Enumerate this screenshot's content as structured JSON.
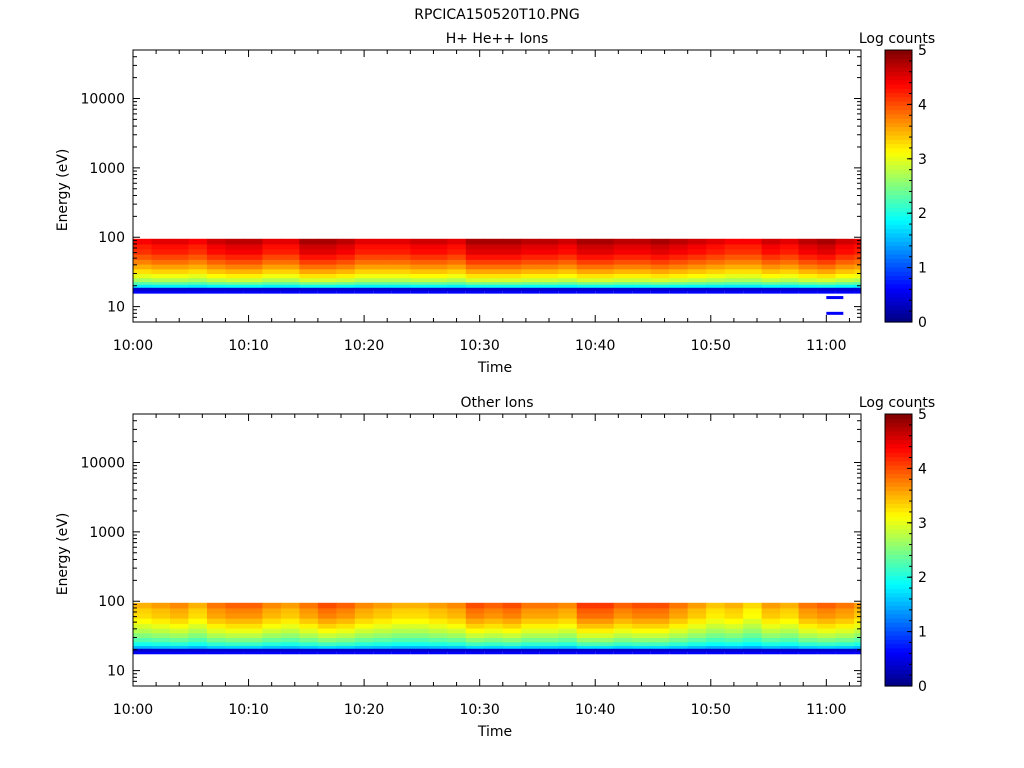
{
  "figure_title": "RPCICA150520T10.PNG",
  "colors": {
    "jet_stops": [
      "#00007f",
      "#0000ff",
      "#0080ff",
      "#00ffff",
      "#80ff80",
      "#ffff00",
      "#ff8000",
      "#ff0000",
      "#7f0000"
    ]
  },
  "chart_data": [
    {
      "type": "heatmap",
      "title": "H+ He++ Ions",
      "xlabel": "Time",
      "ylabel": "Energy (eV)",
      "yscale": "log",
      "ylim": [
        6,
        50000
      ],
      "xlim": [
        "10:00",
        "11:03"
      ],
      "xticks": [
        "10:00",
        "10:10",
        "10:20",
        "10:30",
        "10:40",
        "10:50",
        "11:00"
      ],
      "yticks": [
        "10",
        "100",
        "1000",
        "10000"
      ],
      "colorbar": {
        "label": "Log counts",
        "range": [
          0,
          5
        ],
        "ticks": [
          "0",
          "1",
          "2",
          "3",
          "4",
          "5"
        ]
      },
      "time_bins_min": [
        0,
        1.6,
        3.2,
        4.8,
        6.4,
        8.0,
        9.6,
        11.2,
        12.8,
        14.4,
        16.0,
        17.6,
        19.2,
        20.8,
        22.4,
        24.0,
        25.6,
        27.2,
        28.8,
        30.4,
        32.0,
        33.6,
        35.2,
        36.8,
        38.4,
        40.0,
        41.6,
        43.2,
        44.8,
        46.4,
        48.0,
        49.6,
        51.2,
        52.8,
        54.4,
        56.0,
        57.6,
        59.2,
        60.8,
        62.4
      ],
      "energy_edges_eV": [
        17,
        19,
        21,
        23,
        26,
        30,
        35,
        41,
        48,
        57,
        68,
        80,
        95
      ],
      "peak_log_counts": [
        4.5,
        4.6,
        4.6,
        4.5,
        4.7,
        4.8,
        4.8,
        4.6,
        4.6,
        4.9,
        4.9,
        4.8,
        4.6,
        4.6,
        4.6,
        4.7,
        4.7,
        4.6,
        4.9,
        4.9,
        4.9,
        4.8,
        4.8,
        4.7,
        4.9,
        4.9,
        4.8,
        4.8,
        4.9,
        4.8,
        4.7,
        4.6,
        4.5,
        4.5,
        4.7,
        4.6,
        4.8,
        4.9,
        4.7,
        4.6
      ],
      "low_energy_edge_eV": [
        17.5,
        17.5,
        17.5,
        18,
        18,
        18,
        18,
        17.5,
        17.5,
        18,
        17.5,
        18,
        18,
        17.5,
        18,
        17.5,
        18,
        18,
        18,
        17.5,
        17.5,
        18,
        18,
        17.5,
        18,
        17.5,
        17.5,
        18,
        18,
        17.5,
        18,
        18,
        17.5,
        18,
        18,
        17.5,
        17.5,
        18,
        18,
        17.5
      ],
      "isolated_marks": [
        {
          "t_min": 60.0,
          "energy_eV": 13.5
        },
        {
          "t_min": 60.0,
          "energy_eV": 8
        }
      ]
    },
    {
      "type": "heatmap",
      "title": "Other Ions",
      "xlabel": "Time",
      "ylabel": "Energy (eV)",
      "yscale": "log",
      "ylim": [
        6,
        50000
      ],
      "xlim": [
        "10:00",
        "11:03"
      ],
      "xticks": [
        "10:00",
        "10:10",
        "10:20",
        "10:30",
        "10:40",
        "10:50",
        "11:00"
      ],
      "yticks": [
        "10",
        "100",
        "1000",
        "10000"
      ],
      "colorbar": {
        "label": "Log counts",
        "range": [
          0,
          5
        ],
        "ticks": [
          "0",
          "1",
          "2",
          "3",
          "4",
          "5"
        ]
      },
      "time_bins_min": [
        0,
        1.6,
        3.2,
        4.8,
        6.4,
        8.0,
        9.6,
        11.2,
        12.8,
        14.4,
        16.0,
        17.6,
        19.2,
        20.8,
        22.4,
        24.0,
        25.6,
        27.2,
        28.8,
        30.4,
        32.0,
        33.6,
        35.2,
        36.8,
        38.4,
        40.0,
        41.6,
        43.2,
        44.8,
        46.4,
        48.0,
        49.6,
        51.2,
        52.8,
        54.4,
        56.0,
        57.6,
        59.2,
        60.8,
        62.4
      ],
      "energy_edges_eV": [
        19,
        21,
        23,
        26,
        30,
        35,
        41,
        48,
        57,
        68,
        80,
        95
      ],
      "peak_log_counts": [
        3.6,
        3.7,
        3.8,
        3.6,
        3.9,
        4.0,
        4.0,
        3.8,
        3.7,
        3.9,
        4.1,
        4.0,
        3.8,
        3.7,
        3.6,
        3.6,
        3.7,
        3.8,
        4.1,
        4.0,
        4.1,
        3.9,
        3.9,
        3.8,
        4.2,
        4.2,
        4.0,
        4.1,
        4.1,
        3.9,
        3.7,
        3.5,
        3.6,
        3.4,
        3.7,
        3.6,
        3.9,
        4.0,
        3.9,
        3.7
      ],
      "low_energy_edge_eV": [
        19.5,
        19.5,
        19.5,
        19.5,
        19.5,
        19.5,
        19.5,
        19.5,
        19.5,
        19.5,
        19.5,
        19.5,
        19.5,
        19.5,
        19.5,
        19.5,
        19.5,
        19.5,
        19.5,
        19.5,
        19.5,
        19.5,
        19.5,
        19.5,
        19.5,
        19.5,
        19.5,
        19.5,
        19.5,
        19.5,
        19.5,
        19.5,
        19.5,
        19.5,
        19.5,
        19.5,
        19.5,
        19.5,
        19.5,
        19.5
      ]
    }
  ]
}
